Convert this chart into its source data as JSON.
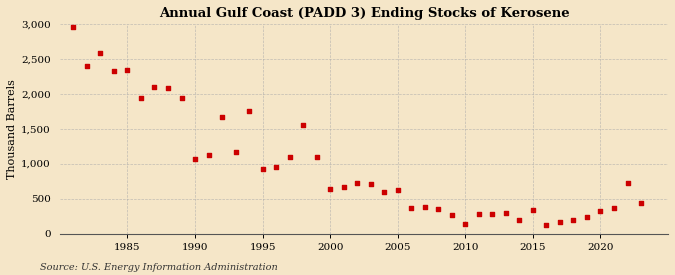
{
  "title": "Annual Gulf Coast (PADD 3) Ending Stocks of Kerosene",
  "ylabel": "Thousand Barrels",
  "source": "Source: U.S. Energy Information Administration",
  "background_color": "#f5e6c8",
  "marker_color": "#cc0000",
  "years": [
    1981,
    1982,
    1983,
    1984,
    1985,
    1986,
    1987,
    1988,
    1989,
    1990,
    1991,
    1992,
    1993,
    1994,
    1995,
    1996,
    1997,
    1998,
    1999,
    2000,
    2001,
    2002,
    2003,
    2004,
    2005,
    2006,
    2007,
    2008,
    2009,
    2010,
    2011,
    2012,
    2013,
    2014,
    2015,
    2016,
    2017,
    2018,
    2019,
    2020,
    2021,
    2022,
    2023
  ],
  "values": [
    2950,
    2400,
    2590,
    2330,
    2340,
    1940,
    2100,
    2080,
    1940,
    1060,
    1130,
    1670,
    1170,
    1760,
    920,
    950,
    1100,
    1550,
    1100,
    640,
    670,
    720,
    710,
    590,
    620,
    360,
    380,
    350,
    260,
    140,
    280,
    280,
    300,
    200,
    340,
    120,
    160,
    200,
    230,
    320,
    370,
    720,
    440
  ],
  "ylim": [
    0,
    3000
  ],
  "yticks": [
    0,
    500,
    1000,
    1500,
    2000,
    2500,
    3000
  ],
  "ytick_labels": [
    "0",
    "500",
    "1,000",
    "1,500",
    "2,000",
    "2,500",
    "3,000"
  ],
  "xticks": [
    1985,
    1990,
    1995,
    2000,
    2005,
    2010,
    2015,
    2020
  ],
  "xlim": [
    1980,
    2025
  ],
  "grid_color": "#aaaaaa",
  "title_fontsize": 9.5,
  "ylabel_fontsize": 8,
  "tick_fontsize": 7.5,
  "source_fontsize": 7
}
